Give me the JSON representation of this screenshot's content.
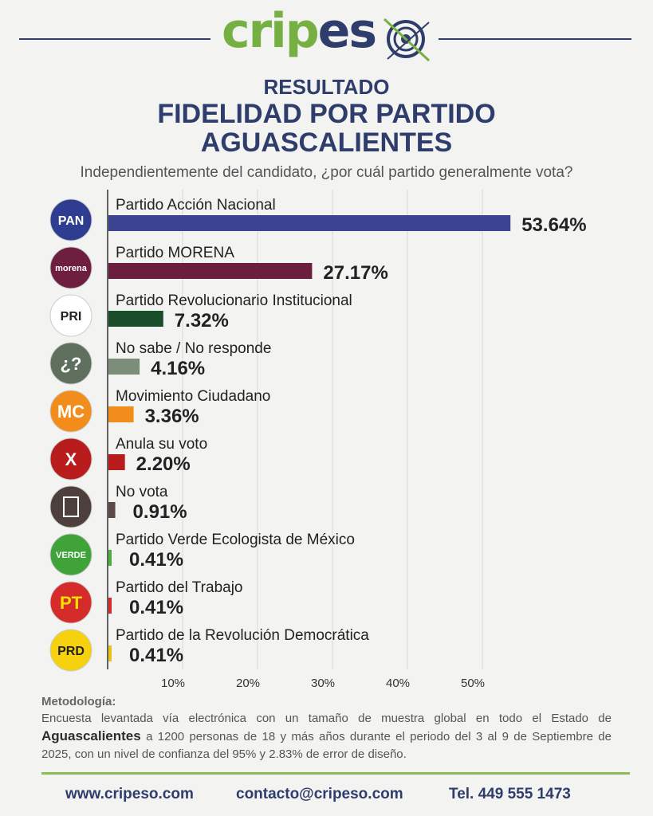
{
  "brand": {
    "logo_text_green": "crip",
    "logo_text_blue": "es",
    "logo_mark": "target-o-icon",
    "color_green": "#76b043",
    "color_blue": "#2e3d6b"
  },
  "header": {
    "kicker": "RESULTADO",
    "title_line1": "FIDELIDAD POR PARTIDO",
    "title_line2": "AGUASCALIENTES",
    "question": "Independientemente del candidato, ¿por cuál partido generalmente vota?"
  },
  "chart_data": {
    "type": "bar",
    "orientation": "horizontal",
    "categories": [
      "Partido Acción Nacional",
      "Partido MORENA",
      "Partido Revolucionario Institucional",
      "No sabe / No responde",
      "Movimiento Ciudadano",
      "Anula su voto",
      "No vota",
      "Partido Verde Ecologista de México",
      "Partido del Trabajo",
      "Partido de la Revolución Democrática"
    ],
    "values": [
      53.64,
      27.17,
      7.32,
      4.16,
      3.36,
      2.2,
      0.91,
      0.41,
      0.41,
      0.41
    ],
    "value_labels": [
      "53.64%",
      "27.17%",
      "7.32%",
      "4.16%",
      "3.36%",
      "2.20%",
      "0.91%",
      "0.41%",
      "0.41%",
      "0.41%"
    ],
    "colors": [
      "#3b4592",
      "#6b1e3e",
      "#1a4d2a",
      "#7c8e7a",
      "#f28c1a",
      "#b81c1c",
      "#5a4a48",
      "#4cae3e",
      "#d62b2b",
      "#e8c21a"
    ],
    "icons": [
      {
        "name": "pan-logo-icon",
        "text": "PAN",
        "bg": "#2e3d8f",
        "fg": "#ffffff"
      },
      {
        "name": "morena-logo-icon",
        "text": "morena",
        "bg": "#6e1f3f",
        "fg": "#ffffff"
      },
      {
        "name": "pri-logo-icon",
        "text": "PRI",
        "bg": "#ffffff",
        "fg": "#222222"
      },
      {
        "name": "question-icon",
        "text": "¿?",
        "bg": "#5f6f5d",
        "fg": "#ffffff"
      },
      {
        "name": "movimiento-ciudadano-logo-icon",
        "text": "MC",
        "bg": "#f28c1a",
        "fg": "#ffffff"
      },
      {
        "name": "x-cross-icon",
        "text": "X",
        "bg": "#b81c1c",
        "fg": "#ffffff"
      },
      {
        "name": "ballot-person-icon",
        "text": "",
        "bg": "#4d3f3c",
        "fg": "#ffffff"
      },
      {
        "name": "verde-logo-icon",
        "text": "VERDE",
        "bg": "#3fa33a",
        "fg": "#ffffff"
      },
      {
        "name": "pt-logo-icon",
        "text": "PT",
        "bg": "#d62b2b",
        "fg": "#ffe100"
      },
      {
        "name": "prd-logo-icon",
        "text": "PRD",
        "bg": "#f5d10f",
        "fg": "#222222"
      }
    ],
    "x_ticks": [
      "10%",
      "20%",
      "30%",
      "40%",
      "50%"
    ],
    "xlim": [
      0,
      57
    ],
    "grid": true,
    "title": "",
    "xlabel": "",
    "ylabel": ""
  },
  "methodology": {
    "heading": "Metodología:",
    "text_part1": "Encuesta levantada vía electrónica con un tamaño de muestra global en todo el Estado de",
    "text_bold": "Aguascalientes",
    "text_part2": "a 1200 personas de 18 y más años durante el periodo del 3 al 9 de Septiembre de 2025, con un nivel de confianza del 95% y 2.83% de error de diseño."
  },
  "footer": {
    "website": "www.cripeso.com",
    "email": "contacto@cripeso.com",
    "phone": "Tel. 449 555 1473"
  }
}
